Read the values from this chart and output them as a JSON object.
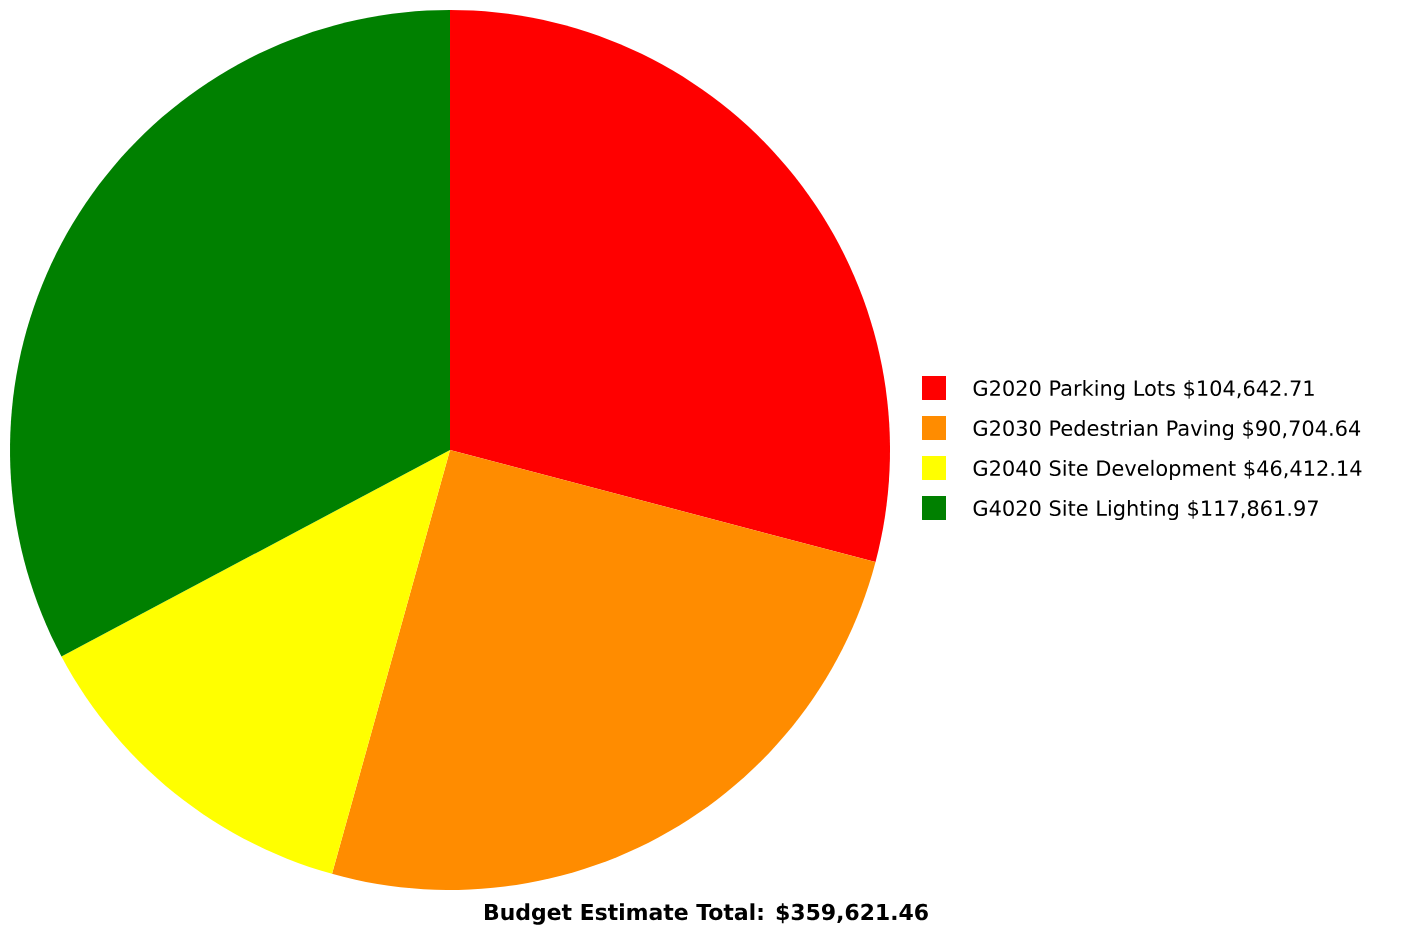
{
  "chart_data": {
    "type": "pie",
    "categories": [
      "G2020 Parking Lots",
      "G2030 Pedestrian Paving",
      "G2040 Site Development",
      "G4020 Site Lighting"
    ],
    "values": [
      104642.71,
      90704.64,
      46412.14,
      117861.97
    ],
    "value_labels": [
      "$104,642.71",
      "$90,704.64",
      "$46,412.14",
      "$117,861.97"
    ],
    "colors": [
      "#ff0000",
      "#ff8c00",
      "#ffff00",
      "#008000"
    ],
    "legend": "right",
    "annotations": [
      "**Budget Estimate Total: $359,621.46**"
    ]
  }
}
